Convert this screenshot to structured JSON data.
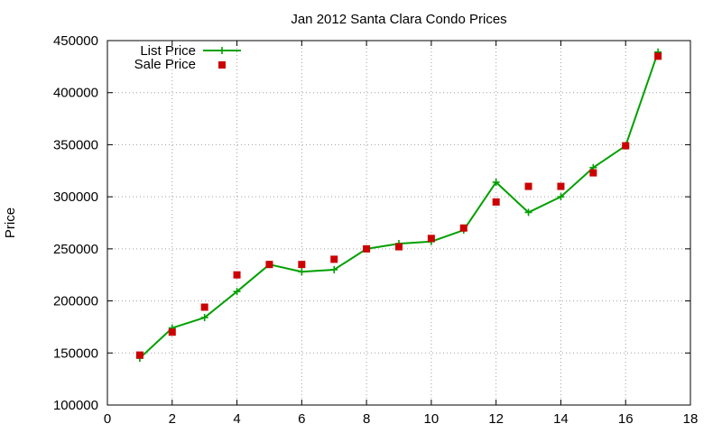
{
  "chart_data": {
    "type": "line",
    "title": "Jan 2012 Santa Clara Condo Prices",
    "xlabel": "",
    "ylabel": "Price",
    "xlim": [
      0,
      18
    ],
    "ylim": [
      100000,
      450000
    ],
    "xticks": [
      0,
      2,
      4,
      6,
      8,
      10,
      12,
      14,
      16,
      18
    ],
    "yticks": [
      100000,
      150000,
      200000,
      250000,
      300000,
      350000,
      400000,
      450000
    ],
    "grid": true,
    "legend_position": "top-left",
    "series": [
      {
        "name": "List Price",
        "style": "line-with-plus-markers",
        "color": "#00a000",
        "x": [
          1,
          2,
          3,
          4,
          5,
          6,
          7,
          8,
          9,
          10,
          11,
          12,
          13,
          14,
          15,
          16,
          17
        ],
        "values": [
          145000,
          174000,
          184000,
          209000,
          235000,
          228000,
          230000,
          250000,
          255000,
          257000,
          268000,
          314000,
          285000,
          300000,
          328000,
          349000,
          439000
        ]
      },
      {
        "name": "Sale Price",
        "style": "square-markers",
        "color": "#cc0000",
        "x": [
          1,
          2,
          3,
          4,
          5,
          6,
          7,
          8,
          9,
          10,
          11,
          12,
          13,
          14,
          15,
          16,
          17
        ],
        "values": [
          148000,
          170000,
          194000,
          225000,
          235000,
          235000,
          240000,
          250000,
          252000,
          260000,
          270000,
          295000,
          310000,
          310000,
          323000,
          349000,
          435000
        ]
      }
    ]
  }
}
